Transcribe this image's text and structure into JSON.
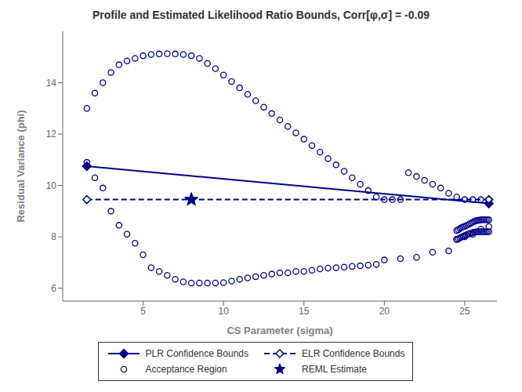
{
  "chart_data": {
    "type": "scatter",
    "title": "Profile and Estimated Likelihood Ratio Bounds, Corr[φ,σ] = -0.09",
    "x_label": "CS Parameter (sigma)",
    "y_label": "Residual Variance (phi)",
    "xlim": [
      0,
      27
    ],
    "ylim": [
      5.5,
      16
    ],
    "xticks": [
      5,
      10,
      15,
      20,
      25
    ],
    "yticks": [
      6,
      8,
      10,
      12,
      14
    ],
    "grid": false,
    "legend": "bottom",
    "color": "#00008B",
    "series": [
      {
        "name": "PLR Confidence Bounds",
        "type": "line",
        "line_style": "solid",
        "marker": "diamond",
        "x": [
          1.5,
          26.5
        ],
        "values": [
          10.75,
          9.3
        ]
      },
      {
        "name": "ELR Confidence Bounds",
        "type": "line",
        "line_style": "dashed",
        "marker": "diamond_open",
        "x": [
          1.5,
          26.5
        ],
        "values": [
          9.45,
          9.45
        ]
      },
      {
        "name": "Acceptance Region",
        "type": "scatter",
        "marker": "circle_open",
        "x": [
          1.5,
          2.0,
          2.5,
          3.0,
          3.5,
          4.0,
          4.5,
          5.0,
          5.5,
          6.0,
          6.5,
          7.0,
          7.5,
          8.0,
          8.5,
          9.0,
          9.5,
          10.0,
          10.5,
          11.0,
          11.5,
          12.0,
          12.5,
          13.0,
          13.5,
          14.0,
          14.5,
          15.0,
          15.5,
          16.0,
          16.5,
          17.0,
          17.5,
          18.0,
          18.5,
          19.0,
          19.5,
          20.0,
          20.5,
          21.0,
          21.5,
          22.0,
          22.5,
          23.0,
          23.5,
          24.0,
          24.5,
          25.0,
          25.5,
          26.0,
          26.5,
          1.5,
          2.0,
          2.5,
          3.0,
          3.5,
          4.0,
          4.5,
          5.0,
          5.5,
          6.0,
          6.5,
          7.0,
          7.5,
          8.0,
          8.5,
          9.0,
          9.5,
          10.0,
          10.5,
          11.0,
          11.5,
          12.0,
          12.5,
          13.0,
          13.5,
          14.0,
          14.5,
          15.0,
          15.5,
          16.0,
          16.5,
          17.0,
          17.5,
          18.0,
          18.5,
          19.0,
          19.5,
          20.0,
          21.0,
          22.0,
          23.0,
          24.0,
          24.5,
          25.0,
          25.5,
          26.0,
          26.5,
          24.5,
          24.6,
          24.7,
          24.8,
          24.9,
          25.0,
          25.1,
          25.2,
          25.3,
          25.4,
          25.5,
          25.6,
          25.7,
          25.8,
          25.9,
          26.0,
          26.1,
          26.2,
          26.3,
          26.4,
          26.5,
          24.5,
          24.6,
          24.7,
          24.8,
          24.9,
          25.0,
          25.1,
          25.2,
          25.3,
          25.4,
          25.5,
          25.6,
          25.7,
          25.8,
          25.9,
          26.0,
          26.1,
          26.2,
          26.3,
          26.4,
          26.5
        ],
        "values": [
          13.0,
          13.6,
          14.0,
          14.4,
          14.7,
          14.85,
          14.95,
          15.05,
          15.1,
          15.12,
          15.13,
          15.12,
          15.1,
          15.05,
          14.95,
          14.75,
          14.55,
          14.3,
          14.05,
          13.8,
          13.55,
          13.3,
          13.05,
          12.8,
          12.55,
          12.3,
          12.05,
          11.8,
          11.55,
          11.3,
          11.05,
          10.8,
          10.55,
          10.3,
          10.05,
          9.8,
          9.55,
          9.45,
          9.45,
          9.45,
          10.5,
          10.35,
          10.2,
          10.05,
          9.9,
          9.7,
          9.55,
          9.45,
          9.45,
          9.45,
          9.45,
          10.9,
          10.3,
          9.9,
          9.0,
          8.45,
          8.1,
          7.75,
          7.3,
          6.8,
          6.65,
          6.5,
          6.35,
          6.25,
          6.2,
          6.2,
          6.2,
          6.2,
          6.22,
          6.28,
          6.35,
          6.4,
          6.45,
          6.5,
          6.55,
          6.6,
          6.6,
          6.65,
          6.65,
          6.7,
          6.75,
          6.78,
          6.8,
          6.82,
          6.85,
          6.87,
          6.9,
          6.93,
          7.1,
          7.15,
          7.2,
          7.4,
          7.45,
          7.9,
          8.0,
          8.1,
          8.3,
          8.4,
          8.25,
          8.28,
          8.32,
          8.36,
          8.39,
          8.41,
          8.44,
          8.47,
          8.51,
          8.54,
          8.57,
          8.6,
          8.63,
          8.64,
          8.65,
          8.66,
          8.67,
          8.67,
          8.67,
          8.67,
          8.67,
          7.9,
          7.93,
          7.96,
          7.99,
          8.02,
          8.05,
          8.07,
          8.1,
          8.12,
          8.15,
          8.17,
          8.18,
          8.19,
          8.2,
          8.2,
          8.2,
          8.2,
          8.2,
          8.2,
          8.2,
          8.2
        ]
      },
      {
        "name": "REML Estimate",
        "type": "scatter",
        "marker": "star",
        "x": [
          8.0
        ],
        "values": [
          9.45
        ]
      }
    ]
  }
}
